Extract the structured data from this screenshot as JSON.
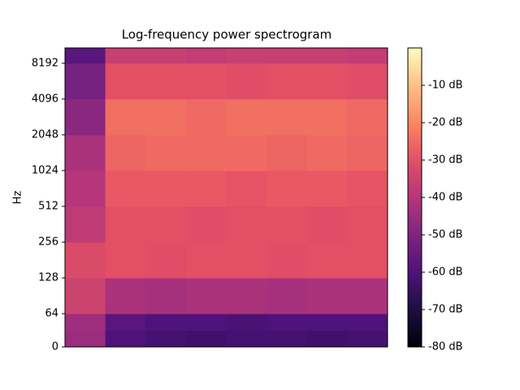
{
  "chart_data": {
    "type": "spectrogram",
    "title": "Log-frequency power spectrogram",
    "y_label": "Hz",
    "yscale": "symlog",
    "colormap": "magma",
    "ylim": [
      0,
      11025
    ],
    "yticks": [
      0,
      64,
      128,
      256,
      512,
      1024,
      2048,
      4096,
      8192
    ],
    "freq_edges": [
      0,
      32,
      64,
      128,
      256,
      512,
      1024,
      2048,
      4096,
      8192,
      11025
    ],
    "values": [
      [
        -45,
        -60,
        -62,
        -63,
        -62,
        -62,
        -63,
        -62
      ],
      [
        -44,
        -58,
        -60,
        -60,
        -61,
        -60,
        -60,
        -60
      ],
      [
        -35,
        -42,
        -43,
        -42,
        -42,
        -43,
        -42,
        -42
      ],
      [
        -32,
        -30,
        -31,
        -30,
        -30,
        -31,
        -30,
        -30
      ],
      [
        -38,
        -30,
        -30,
        -31,
        -30,
        -30,
        -31,
        -30
      ],
      [
        -40,
        -28,
        -28,
        -28,
        -29,
        -28,
        -28,
        -29
      ],
      [
        -42,
        -26,
        -25,
        -25,
        -25,
        -26,
        -25,
        -26
      ],
      [
        -48,
        -24,
        -24,
        -25,
        -24,
        -24,
        -24,
        -25
      ],
      [
        -52,
        -30,
        -30,
        -30,
        -31,
        -30,
        -30,
        -31
      ],
      [
        -58,
        -36,
        -36,
        -37,
        -36,
        -36,
        -36,
        -37
      ]
    ],
    "clim": [
      -80,
      0
    ],
    "cticks": [
      {
        "value": -80,
        "label": "-80 dB"
      },
      {
        "value": -70,
        "label": "-70 dB"
      },
      {
        "value": -60,
        "label": "-60 dB"
      },
      {
        "value": -50,
        "label": "-50 dB"
      },
      {
        "value": -40,
        "label": "-40 dB"
      },
      {
        "value": -30,
        "label": "-30 dB"
      },
      {
        "value": -20,
        "label": "-20 dB"
      },
      {
        "value": -10,
        "label": "-10 dB"
      }
    ]
  }
}
